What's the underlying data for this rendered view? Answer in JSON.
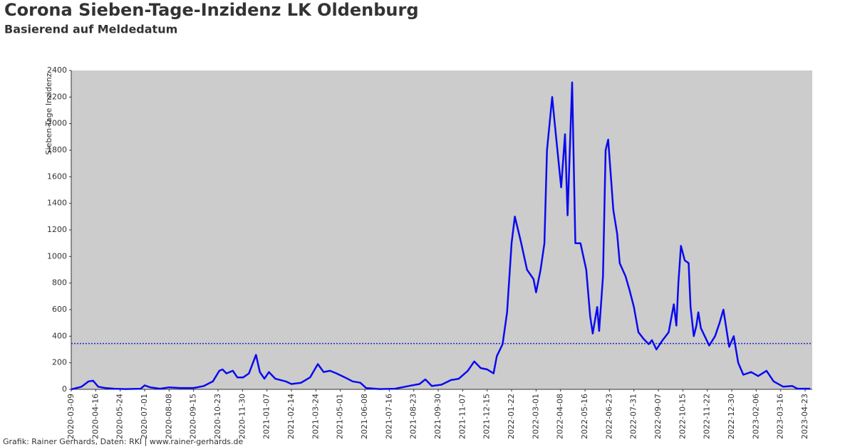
{
  "chart_data": {
    "type": "line",
    "title": "Corona Sieben-Tage-Inzidenz LK Oldenburg",
    "subtitle": "Basierend auf Meldedatum",
    "y_label": "Sieben-Tage Inzidenz",
    "footer": "Grafik: Rainer Gerhards, Daten: RKI | www.rainer-gerhards.de",
    "xlim": [
      "2020-03-09",
      "2023-05-04"
    ],
    "ylim": [
      0,
      2400
    ],
    "yticks": [
      0,
      200,
      400,
      600,
      800,
      1000,
      1200,
      1400,
      1600,
      1800,
      2000,
      2200,
      2400
    ],
    "xticks": [
      "2020-03-09",
      "2020-04-16",
      "2020-05-24",
      "2020-07-01",
      "2020-08-08",
      "2020-09-15",
      "2020-10-23",
      "2020-11-30",
      "2021-01-07",
      "2021-02-14",
      "2021-03-24",
      "2021-05-01",
      "2021-06-08",
      "2021-07-16",
      "2021-08-23",
      "2021-09-30",
      "2021-11-07",
      "2021-12-15",
      "2022-01-22",
      "2022-03-01",
      "2022-04-08",
      "2022-05-16",
      "2022-06-23",
      "2022-07-31",
      "2022-09-07",
      "2022-10-15",
      "2022-11-22",
      "2022-12-30",
      "2023-02-06",
      "2023-03-16",
      "2023-04-23"
    ],
    "reference_value": 345,
    "reference_color": "#2222cc",
    "plot_background": "#cccccc",
    "series": [
      {
        "name": "Sieben-Tage Inzidenz",
        "color": "#0a0af0",
        "x": [
          "2020-03-09",
          "2020-03-25",
          "2020-04-05",
          "2020-04-12",
          "2020-04-20",
          "2020-05-01",
          "2020-05-15",
          "2020-06-01",
          "2020-06-25",
          "2020-07-01",
          "2020-07-10",
          "2020-07-25",
          "2020-08-08",
          "2020-08-25",
          "2020-09-15",
          "2020-10-01",
          "2020-10-15",
          "2020-10-25",
          "2020-10-30",
          "2020-11-05",
          "2020-11-15",
          "2020-11-22",
          "2020-12-01",
          "2020-12-10",
          "2020-12-21",
          "2020-12-27",
          "2021-01-03",
          "2021-01-10",
          "2021-01-20",
          "2021-02-05",
          "2021-02-14",
          "2021-03-01",
          "2021-03-15",
          "2021-03-27",
          "2021-04-05",
          "2021-04-15",
          "2021-04-25",
          "2021-05-08",
          "2021-05-20",
          "2021-06-01",
          "2021-06-10",
          "2021-07-01",
          "2021-07-25",
          "2021-08-15",
          "2021-09-01",
          "2021-09-10",
          "2021-09-20",
          "2021-10-05",
          "2021-10-20",
          "2021-11-01",
          "2021-11-15",
          "2021-11-25",
          "2021-12-05",
          "2021-12-15",
          "2021-12-25",
          "2021-12-30",
          "2022-01-08",
          "2022-01-15",
          "2022-01-22",
          "2022-01-27",
          "2022-02-05",
          "2022-02-15",
          "2022-02-25",
          "2022-03-01",
          "2022-03-08",
          "2022-03-14",
          "2022-03-18",
          "2022-03-26",
          "2022-03-30",
          "2022-04-09",
          "2022-04-15",
          "2022-04-19",
          "2022-04-26",
          "2022-05-01",
          "2022-05-09",
          "2022-05-18",
          "2022-05-24",
          "2022-05-28",
          "2022-06-04",
          "2022-06-07",
          "2022-06-13",
          "2022-06-17",
          "2022-06-21",
          "2022-06-29",
          "2022-07-05",
          "2022-07-09",
          "2022-07-18",
          "2022-07-24",
          "2022-07-31",
          "2022-08-07",
          "2022-08-15",
          "2022-08-23",
          "2022-08-28",
          "2022-09-04",
          "2022-09-12",
          "2022-09-23",
          "2022-10-01",
          "2022-10-05",
          "2022-10-08",
          "2022-10-12",
          "2022-10-18",
          "2022-10-24",
          "2022-10-27",
          "2022-11-01",
          "2022-11-05",
          "2022-11-08",
          "2022-11-12",
          "2022-11-18",
          "2022-11-25",
          "2022-12-04",
          "2022-12-11",
          "2022-12-17",
          "2022-12-26",
          "2023-01-02",
          "2023-01-09",
          "2023-01-17",
          "2023-01-29",
          "2023-02-09",
          "2023-02-22",
          "2023-03-05",
          "2023-03-20",
          "2023-04-03",
          "2023-04-11",
          "2023-05-01"
        ],
        "values": [
          0,
          20,
          60,
          65,
          20,
          10,
          5,
          2,
          5,
          30,
          15,
          5,
          15,
          10,
          10,
          25,
          60,
          140,
          150,
          120,
          140,
          90,
          90,
          120,
          260,
          130,
          80,
          130,
          80,
          60,
          40,
          50,
          90,
          190,
          130,
          140,
          120,
          90,
          60,
          50,
          10,
          2,
          5,
          25,
          40,
          75,
          25,
          35,
          70,
          80,
          140,
          210,
          160,
          150,
          120,
          250,
          340,
          580,
          1100,
          1300,
          1120,
          900,
          830,
          730,
          900,
          1100,
          1800,
          2200,
          2000,
          1520,
          1920,
          1310,
          2310,
          1100,
          1100,
          900,
          550,
          420,
          620,
          440,
          850,
          1800,
          1880,
          1350,
          1170,
          950,
          850,
          750,
          620,
          430,
          380,
          340,
          370,
          300,
          360,
          430,
          640,
          480,
          800,
          1080,
          970,
          950,
          620,
          400,
          480,
          580,
          460,
          400,
          330,
          400,
          500,
          600,
          320,
          400,
          200,
          110,
          130,
          100,
          140,
          60,
          20,
          25,
          5,
          5
        ]
      }
    ]
  }
}
